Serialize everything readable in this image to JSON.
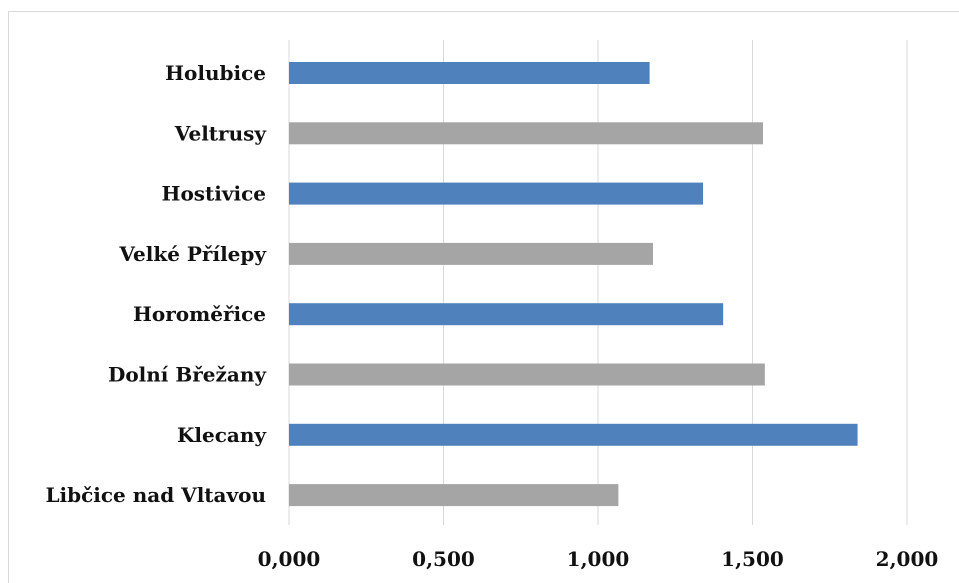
{
  "chart_data": {
    "type": "bar",
    "orientation": "horizontal",
    "categories": [
      "Holubice",
      "Veltrusy",
      "Hostivice",
      "Velké Přílepy",
      "Horoměřice",
      "Dolní Břežany",
      "Klecany",
      "Libčice nad Vltavou"
    ],
    "values": [
      1.167,
      1.534,
      1.34,
      1.178,
      1.405,
      1.54,
      1.84,
      1.066
    ],
    "bar_colors": [
      "#4f81bd",
      "#a5a5a5",
      "#4f81bd",
      "#a5a5a5",
      "#4f81bd",
      "#a5a5a5",
      "#4f81bd",
      "#a5a5a5"
    ],
    "xlim": [
      0,
      2
    ],
    "x_ticks": [
      0,
      0.5,
      1,
      1.5,
      2
    ],
    "x_tick_labels": [
      "0,000",
      "0,500",
      "1,000",
      "1,500",
      "2,000"
    ],
    "grid": "vertical",
    "gridline_color": "#d9d9d9",
    "frame_color": "#d9d9d9",
    "title": "",
    "xlabel": "",
    "ylabel": ""
  }
}
